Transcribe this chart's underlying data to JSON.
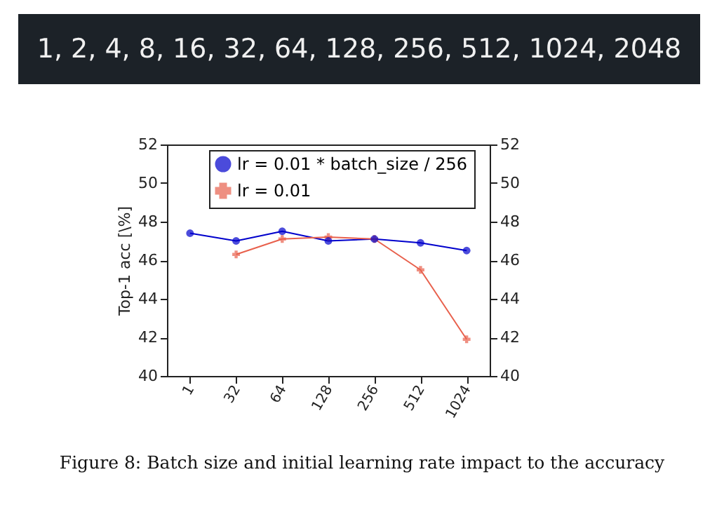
{
  "chart_data": {
    "type": "line",
    "title": "1, 2, 4, 8, 16, 32, 64, 128, 256, 512, 1024, 2048",
    "ylabel": "Top-1 acc [\\%]",
    "annotations": [
      "Figure 8: Batch size and initial learning rate impact to the accuracy"
    ],
    "categories": [
      "1",
      "32",
      "64",
      "128",
      "256",
      "512",
      "1024"
    ],
    "series": [
      {
        "name": "lr = 0.01 * batch_size / 256",
        "color": "#0000cc",
        "marker": "circle",
        "values": [
          47.4,
          47.0,
          47.5,
          47.0,
          47.1,
          46.9,
          46.5
        ]
      },
      {
        "name": "lr = 0.01",
        "color": "#e8604c",
        "marker": "cross",
        "values": [
          null,
          46.3,
          47.1,
          47.2,
          47.1,
          45.5,
          41.9
        ]
      }
    ],
    "ylim": [
      40,
      52
    ],
    "yticks": [
      40,
      42,
      44,
      46,
      48,
      50,
      52
    ],
    "y2lim": [
      40,
      52
    ],
    "y2ticks": [
      40,
      42,
      44,
      46,
      48,
      50,
      52
    ],
    "grid": false,
    "legend": "top",
    "line_style": "solid"
  }
}
